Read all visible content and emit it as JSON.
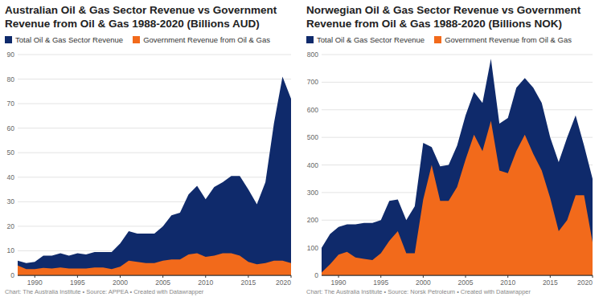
{
  "chart_data": [
    {
      "type": "area",
      "title": "Australian Oil & Gas Sector Revenue vs Government Revenue from Oil & Gas 1988-2020 (Billions AUD)",
      "source": "Chart: The Australia Institute • Source: APPEA • Created with Datawrapper",
      "x": [
        1988,
        1989,
        1990,
        1991,
        1992,
        1993,
        1994,
        1995,
        1996,
        1997,
        1998,
        1999,
        2000,
        2001,
        2002,
        2003,
        2004,
        2005,
        2006,
        2007,
        2008,
        2009,
        2010,
        2011,
        2012,
        2013,
        2014,
        2015,
        2016,
        2017,
        2018,
        2019,
        2020
      ],
      "series": [
        {
          "name": "Total Oil & Gas Sector Revenue",
          "color": "#0f2a6b",
          "values": [
            6,
            5,
            5.5,
            8,
            8,
            9,
            8,
            9,
            8.5,
            9.5,
            9.5,
            9.5,
            13,
            18,
            17,
            17,
            17,
            20,
            24.5,
            25.5,
            33,
            36.5,
            31,
            36,
            38,
            40.5,
            40.5,
            35,
            29,
            38,
            62,
            81,
            72
          ]
        },
        {
          "name": "Government Revenue from Oil & Gas",
          "color": "#f26a1b",
          "values": [
            4,
            2.5,
            2.5,
            3,
            2.8,
            3.2,
            2.8,
            2.8,
            2.8,
            3.2,
            3.2,
            2.5,
            3.5,
            6,
            5.5,
            5,
            5,
            6,
            6.5,
            6.5,
            8.5,
            9,
            7.5,
            8,
            9,
            9,
            8,
            5.5,
            4.5,
            5,
            6,
            6,
            5
          ]
        }
      ],
      "xlim": [
        1988,
        2020
      ],
      "xticks": [
        1990,
        1995,
        2000,
        2005,
        2010,
        2015,
        2020
      ],
      "ylim": [
        0,
        90
      ],
      "yticks": [
        0,
        10,
        20,
        30,
        40,
        50,
        60,
        70,
        80,
        90
      ],
      "grid": true,
      "legend": "top-left"
    },
    {
      "type": "area",
      "title": "Norwegian Oil & Gas Sector Revenue vs Government Revenue from Oil & Gas 1988-2020 (Billions NOK)",
      "source": "Chart: The Australia Institute • Source: Norsk Petroleum • Created with Datawrapper",
      "x": [
        1988,
        1989,
        1990,
        1991,
        1992,
        1993,
        1994,
        1995,
        1996,
        1997,
        1998,
        1999,
        2000,
        2001,
        2002,
        2003,
        2004,
        2005,
        2006,
        2007,
        2008,
        2009,
        2010,
        2011,
        2012,
        2013,
        2014,
        2015,
        2016,
        2017,
        2018,
        2019,
        2020
      ],
      "series": [
        {
          "name": "Total Oil & Gas Sector Revenue",
          "color": "#0f2a6b",
          "values": [
            100,
            150,
            175,
            185,
            185,
            190,
            190,
            200,
            270,
            275,
            200,
            250,
            480,
            465,
            395,
            400,
            470,
            580,
            665,
            625,
            785,
            550,
            570,
            680,
            715,
            680,
            625,
            500,
            410,
            500,
            580,
            470,
            350
          ]
        },
        {
          "name": "Government Revenue from Oil & Gas",
          "color": "#f26a1b",
          "values": [
            10,
            40,
            75,
            85,
            65,
            60,
            55,
            80,
            125,
            160,
            80,
            80,
            275,
            400,
            270,
            270,
            320,
            420,
            510,
            450,
            560,
            380,
            370,
            450,
            510,
            440,
            380,
            280,
            160,
            200,
            290,
            290,
            120
          ]
        }
      ],
      "xlim": [
        1988,
        2020
      ],
      "xticks": [
        1990,
        1995,
        2000,
        2005,
        2010,
        2015,
        2020
      ],
      "ylim": [
        0,
        800
      ],
      "yticks": [
        0,
        100,
        200,
        300,
        400,
        500,
        600,
        700,
        800
      ],
      "grid": true,
      "legend": "top-left"
    }
  ]
}
